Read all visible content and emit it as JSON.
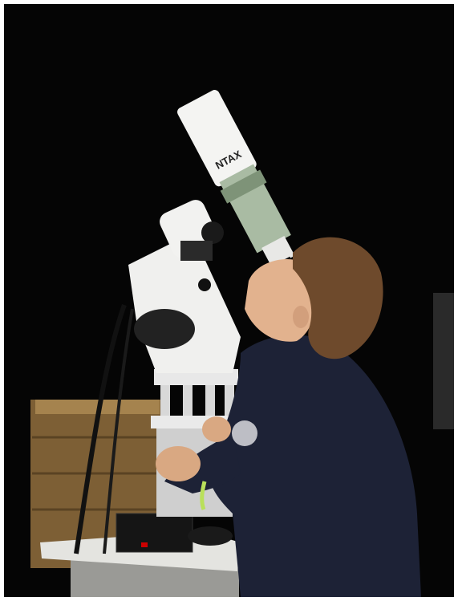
{
  "image": {
    "telescope_label": "NTAX"
  }
}
